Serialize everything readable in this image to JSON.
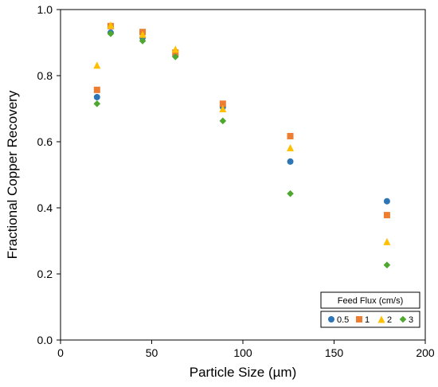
{
  "chart_data": {
    "type": "scatter",
    "xlabel": "Particle Size (µm)",
    "ylabel": "Fractional Copper Recovery",
    "xlim": [
      0,
      200
    ],
    "ylim": [
      0.0,
      1.0
    ],
    "xticks": [
      "0",
      "50",
      "100",
      "150",
      "200"
    ],
    "yticks": [
      "0.0",
      "0.2",
      "0.4",
      "0.6",
      "0.8",
      "1.0"
    ],
    "grid": false,
    "legend": {
      "title": "Feed Flux (cm/s)",
      "placement": "bottom-right"
    },
    "series": [
      {
        "name": "0.5",
        "marker": "circle",
        "color": "#2E75B6",
        "x": [
          20,
          27.5,
          45,
          63,
          89,
          126,
          179
        ],
        "y": [
          0.735,
          0.93,
          0.915,
          0.862,
          0.705,
          0.54,
          0.42
        ]
      },
      {
        "name": "1",
        "marker": "square",
        "color": "#ED7D31",
        "x": [
          20,
          27.5,
          45,
          63,
          89,
          126,
          179
        ],
        "y": [
          0.757,
          0.95,
          0.932,
          0.87,
          0.715,
          0.617,
          0.378
        ]
      },
      {
        "name": "2",
        "marker": "triangle",
        "color": "#FFC000",
        "x": [
          20,
          27.5,
          45,
          63,
          89,
          126,
          179
        ],
        "y": [
          0.832,
          0.953,
          0.925,
          0.88,
          0.7,
          0.582,
          0.298
        ]
      },
      {
        "name": "3",
        "marker": "diamond",
        "color": "#4EA72E",
        "x": [
          20,
          27.5,
          45,
          63,
          89,
          126,
          179
        ],
        "y": [
          0.715,
          0.927,
          0.905,
          0.857,
          0.663,
          0.443,
          0.227
        ]
      }
    ]
  }
}
